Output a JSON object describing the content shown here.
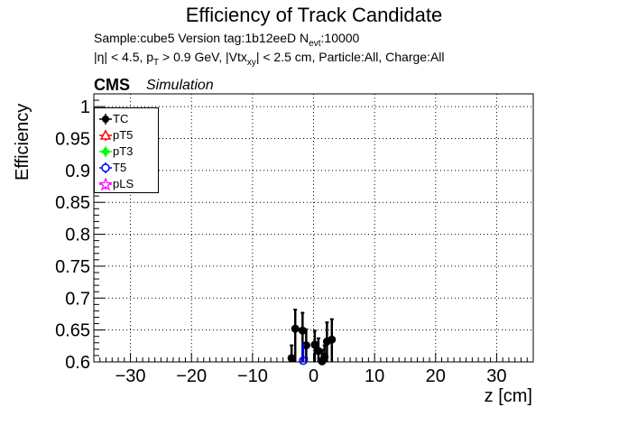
{
  "page": {
    "title": "Efficiency of Track Candidate",
    "sample_line": "Sample:cube5   Version tag:1b12eeD  N",
    "sample_sub": "evt",
    "sample_tail": ":10000",
    "cuts": {
      "a": "|η| < 4.5, p",
      "a_sub": "T",
      "b": " > 0.9 GeV, |Vtx",
      "b_sub": "xy",
      "c": "| < 2.5 cm, Particle:All, Charge:All"
    },
    "cms": "CMS",
    "simulation": "Simulation"
  },
  "colors": {
    "TC": "#000000",
    "pT5": "#ff0000",
    "pT3": "#00ff00",
    "T5": "#0000ff",
    "pLS": "#ff00ff"
  },
  "chart_data": {
    "type": "scatter",
    "title": "Efficiency of Track Candidate",
    "xlabel": "z [cm]",
    "ylabel": "Efficiency",
    "xlim": [
      -36,
      36
    ],
    "ylim": [
      0.6,
      1.02
    ],
    "xticks": [
      -30,
      -20,
      -10,
      0,
      10,
      20,
      30
    ],
    "xtick_labels": [
      "−30",
      "−20",
      "−10",
      "0",
      "10",
      "20",
      "30"
    ],
    "yticks": [
      0.6,
      0.65,
      0.7,
      0.75,
      0.8,
      0.85,
      0.9,
      0.95,
      1
    ],
    "ytick_labels": [
      "0.6",
      "0.65",
      "0.7",
      "0.75",
      "0.8",
      "0.85",
      "0.9",
      "0.95",
      "1"
    ],
    "grid": true,
    "legend_position": "top-left",
    "legend": [
      "TC",
      "pT5",
      "pT3",
      "T5",
      "pLS"
    ],
    "series": [
      {
        "name": "TC",
        "marker": "filled-circle",
        "points": [
          {
            "x": -3.6,
            "y": 0.606,
            "err_up": 0.02,
            "err_down": 0.006
          },
          {
            "x": -3.0,
            "y": 0.652,
            "err_up": 0.03,
            "err_down": 0.052
          },
          {
            "x": -1.8,
            "y": 0.649,
            "err_up": 0.028,
            "err_down": 0.049
          },
          {
            "x": -1.2,
            "y": 0.626,
            "err_up": 0.025,
            "err_down": 0.026
          },
          {
            "x": 0.2,
            "y": 0.627,
            "err_up": 0.022,
            "err_down": 0.027
          },
          {
            "x": 0.8,
            "y": 0.617,
            "err_up": 0.02,
            "err_down": 0.017
          },
          {
            "x": 1.4,
            "y": 0.601,
            "err_up": 0.018,
            "err_down": 0.001
          },
          {
            "x": 1.8,
            "y": 0.608,
            "err_up": 0.018,
            "err_down": 0.008
          },
          {
            "x": 2.2,
            "y": 0.632,
            "err_up": 0.03,
            "err_down": 0.032
          },
          {
            "x": 3.0,
            "y": 0.635,
            "err_up": 0.032,
            "err_down": 0.035
          }
        ]
      },
      {
        "name": "pT5",
        "marker": "open-triangle",
        "points": []
      },
      {
        "name": "pT3",
        "marker": "filled-cross",
        "points": []
      },
      {
        "name": "T5",
        "marker": "open-circle",
        "points": [
          {
            "x": -1.7,
            "y": 0.602,
            "err_up": 0.025,
            "err_down": 0.002
          }
        ]
      },
      {
        "name": "pLS",
        "marker": "open-star",
        "points": []
      }
    ]
  }
}
